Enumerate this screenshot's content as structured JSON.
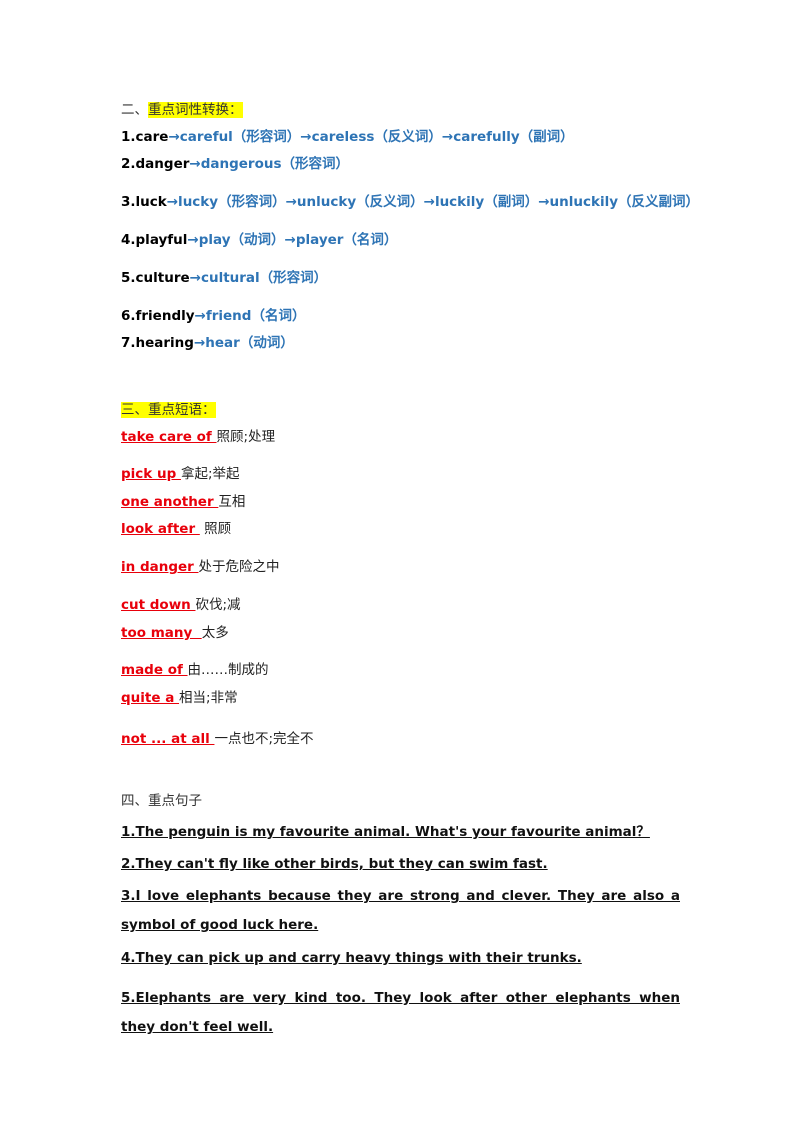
{
  "section2": {
    "title_prefix": "二、",
    "title": "重点词性转换：",
    "items": [
      {
        "word": "1.care",
        "forms": "→careful（形容词）→careless（反义词）→carefully（副词）"
      },
      {
        "word": "2.danger",
        "forms": "→dangerous（形容词）"
      },
      {
        "word": "3.luck",
        "forms": "→lucky（形容词）→unlucky（反义词）→luckily（副词）→unluckily（反义副词）"
      },
      {
        "word": "4.playful",
        "forms": "→play（动词）→player（名词）"
      },
      {
        "word": "5.culture",
        "forms": "→cultural（形容词）"
      },
      {
        "word": "6.friendly",
        "forms": "→friend（名词）"
      },
      {
        "word": "7.hearing",
        "forms": "→hear（动词）"
      }
    ]
  },
  "section3": {
    "title": "三、重点短语：",
    "phrases": [
      {
        "en": "take care of ",
        "zh": "照顾;处理"
      },
      {
        "en": "pick up ",
        "zh": "拿起;举起"
      },
      {
        "en": "one another ",
        "zh": "互相"
      },
      {
        "en": "look after ",
        "zh": " 照顾"
      },
      {
        "en": "in danger ",
        "zh": "处于危险之中"
      },
      {
        "en": "cut down ",
        "zh": "砍伐;减"
      },
      {
        "en": "too many  ",
        "zh": "太多"
      },
      {
        "en": "made of ",
        "zh": "由……制成的"
      },
      {
        "en": "quite a ",
        "zh": "相当;非常"
      },
      {
        "en": "not ... at all ",
        "zh": "一点也不;完全不"
      }
    ]
  },
  "section4": {
    "title": "四、重点句子",
    "sentences": [
      "1.The penguin is my favourite animal. What's your favourite animal？",
      "2.They can't fly like other birds, but they can   swim fast.",
      "3.I love elephants because they are strong and clever. They are also a symbol of good luck here. ",
      "4.They can pick up and carry heavy things with their trunks.",
      "5.Elephants are very kind too. They look after other elephants when they don't feel well. "
    ]
  }
}
